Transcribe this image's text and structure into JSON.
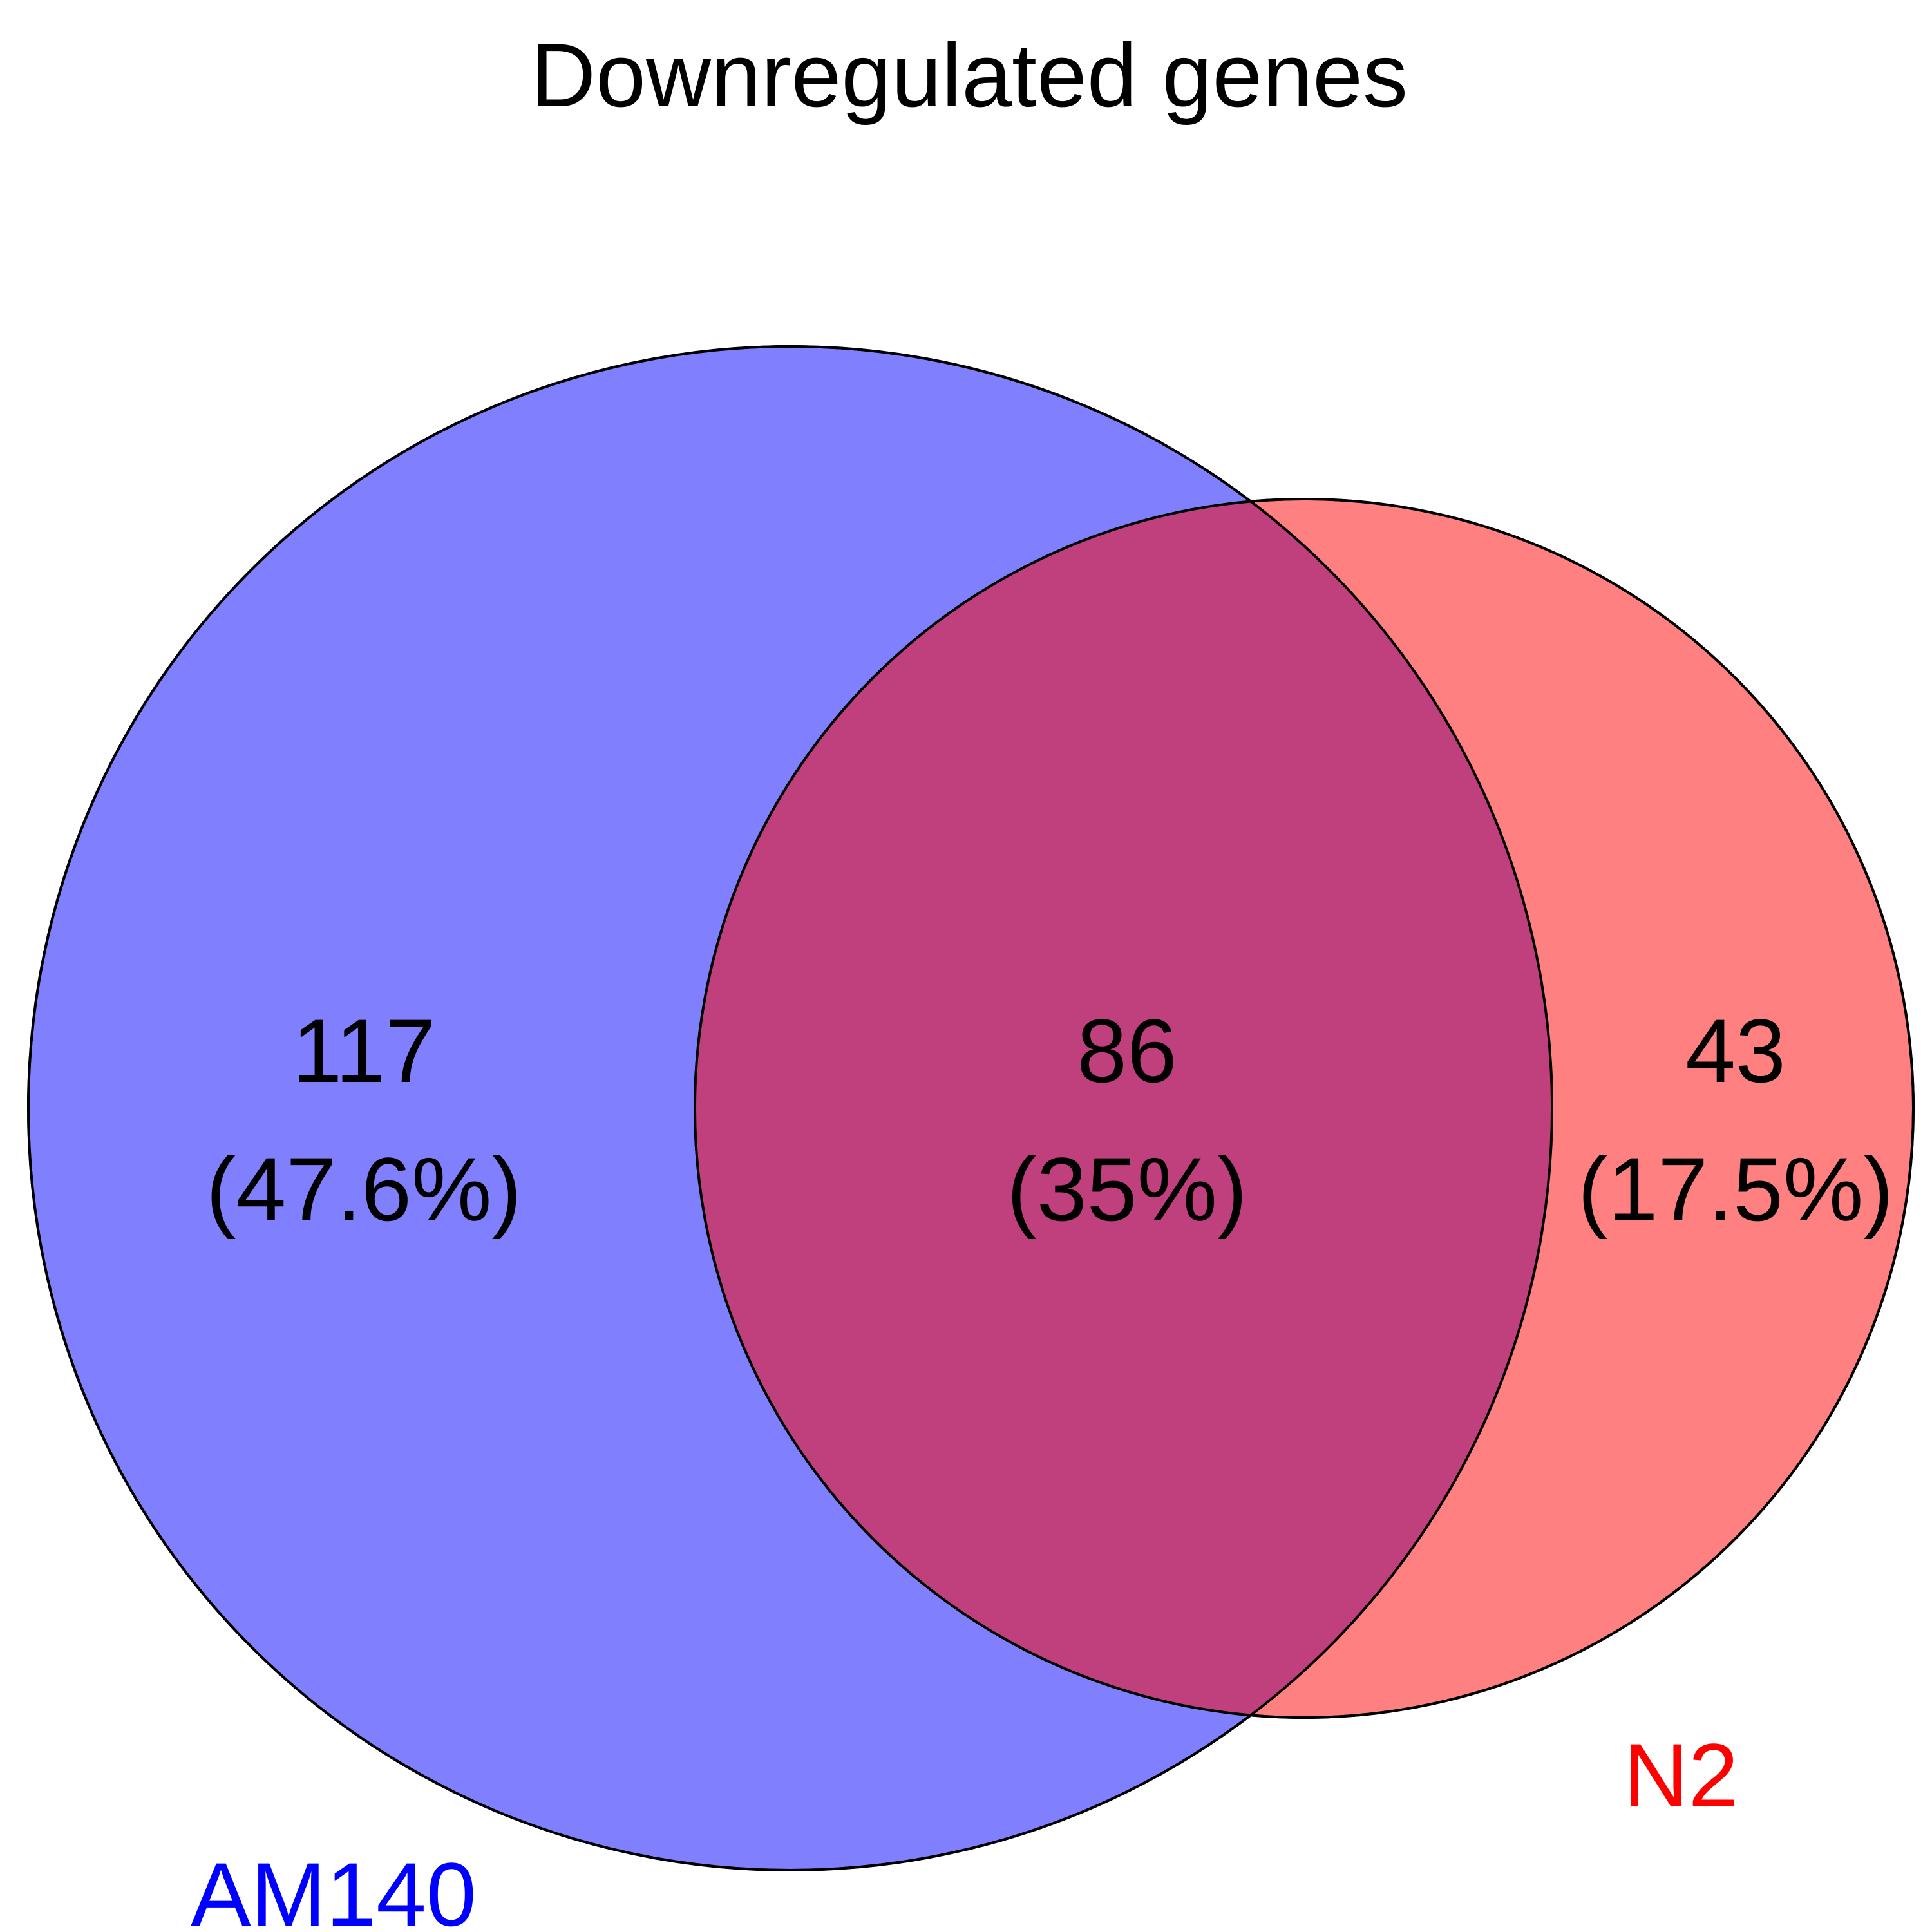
{
  "title": "Downregulated genes",
  "colors": {
    "set_a_fill": "#8080FF",
    "set_b_fill": "#FF8080",
    "overlap_fill": "#C0407E",
    "set_a_label": "#0000FF",
    "set_b_label": "#FF0000",
    "stroke": "#000000",
    "text": "#000000",
    "background": "#FFFFFF"
  },
  "sets": [
    {
      "id": "a",
      "name": "AM140",
      "only_count": "117",
      "only_percent": "(47.6%)"
    },
    {
      "id": "b",
      "name": "N2",
      "only_count": "43",
      "only_percent": "(17.5%)"
    }
  ],
  "overlap": {
    "count": "86",
    "percent": "(35%)"
  }
}
